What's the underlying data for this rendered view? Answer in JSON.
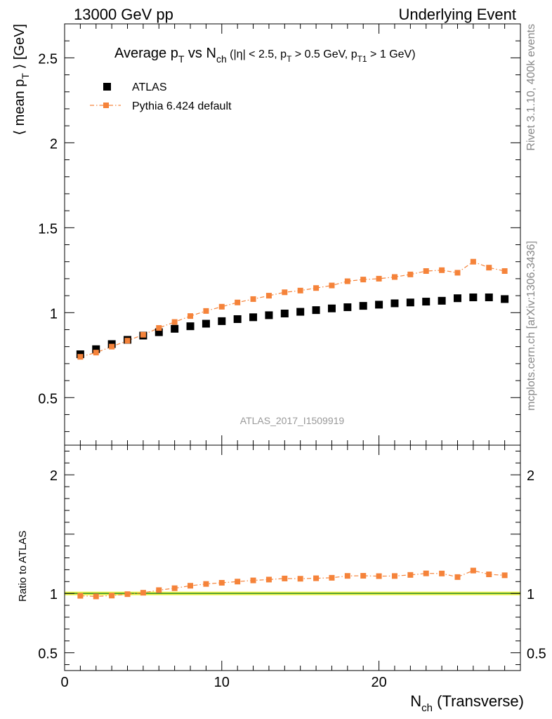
{
  "header": {
    "left": "13000 GeV pp",
    "right": "Underlying Event"
  },
  "side_labels": {
    "rivet": "Rivet 3.1.10,  400k events",
    "mcplots": "mcplots.cern.ch [arXiv:1306.3436]"
  },
  "watermark": "ATLAS_2017_I1509919",
  "colors": {
    "atlas": "#000000",
    "pythia": "#f5833a",
    "band": "#f0f54c",
    "reference_line": "#2b8a2b"
  },
  "chart_data": [
    {
      "type": "scatter",
      "title_parts": {
        "a": "Average p",
        "a_sub": "T",
        "b": " vs N",
        "b_sub": "ch",
        "c": " (|η| < 2.5, p",
        "c_sub": "T",
        "d": " > 0.5 GeV, p",
        "d_sub": "T1",
        "e": " > 1 GeV)"
      },
      "ylabel_parts": {
        "a": "⟨ mean p",
        "a_sub": "T",
        "b": " ⟩ [GeV]"
      },
      "xlim": [
        0,
        29
      ],
      "ylim": [
        0.22,
        2.7
      ],
      "yticks": [
        0.5,
        1,
        1.5,
        2,
        2.5
      ],
      "ytick_labels": [
        "0.5",
        "1",
        "1.5",
        "2",
        "2.5"
      ],
      "legend_position": "top-left",
      "x": [
        1,
        2,
        3,
        4,
        5,
        6,
        7,
        8,
        9,
        10,
        11,
        12,
        13,
        14,
        15,
        16,
        17,
        18,
        19,
        20,
        21,
        22,
        23,
        24,
        25,
        26,
        27,
        28
      ],
      "series": [
        {
          "name": "ATLAS",
          "marker": "square",
          "values": [
            0.755,
            0.785,
            0.815,
            0.84,
            0.865,
            0.885,
            0.905,
            0.92,
            0.935,
            0.95,
            0.962,
            0.973,
            0.985,
            0.995,
            1.005,
            1.015,
            1.025,
            1.032,
            1.04,
            1.047,
            1.055,
            1.06,
            1.065,
            1.07,
            1.085,
            1.09,
            1.09,
            1.08
          ]
        },
        {
          "name": "Pythia 6.424 default",
          "marker": "square-dashdot",
          "values": [
            0.74,
            0.765,
            0.8,
            0.835,
            0.87,
            0.91,
            0.945,
            0.98,
            1.01,
            1.035,
            1.06,
            1.08,
            1.1,
            1.12,
            1.13,
            1.145,
            1.16,
            1.185,
            1.195,
            1.2,
            1.21,
            1.225,
            1.245,
            1.25,
            1.235,
            1.3,
            1.265,
            1.245
          ]
        }
      ]
    },
    {
      "type": "line",
      "ylabel": "Ratio to ATLAS",
      "xlabel_parts": {
        "a": "N",
        "a_sub": "ch",
        "b": " (Transverse)"
      },
      "xlim": [
        0,
        29
      ],
      "ylim": [
        0.35,
        2.25
      ],
      "xticks": [
        0,
        10,
        20
      ],
      "xtick_labels": [
        "0",
        "10",
        "20"
      ],
      "yticks": [
        0.5,
        1,
        2
      ],
      "ytick_labels": [
        "0.5",
        "1",
        "2"
      ],
      "reference": 1.0,
      "band": [
        0.985,
        1.015
      ],
      "x": [
        1,
        2,
        3,
        4,
        5,
        6,
        7,
        8,
        9,
        10,
        11,
        12,
        13,
        14,
        15,
        16,
        17,
        18,
        19,
        20,
        21,
        22,
        23,
        24,
        25,
        26,
        27,
        28
      ],
      "series": [
        {
          "name": "Pythia 6.424 default",
          "values": [
            0.98,
            0.975,
            0.982,
            0.994,
            1.006,
            1.028,
            1.044,
            1.065,
            1.08,
            1.09,
            1.1,
            1.11,
            1.117,
            1.126,
            1.124,
            1.128,
            1.132,
            1.148,
            1.149,
            1.146,
            1.147,
            1.156,
            1.169,
            1.168,
            1.138,
            1.193,
            1.161,
            1.153
          ]
        }
      ]
    }
  ]
}
